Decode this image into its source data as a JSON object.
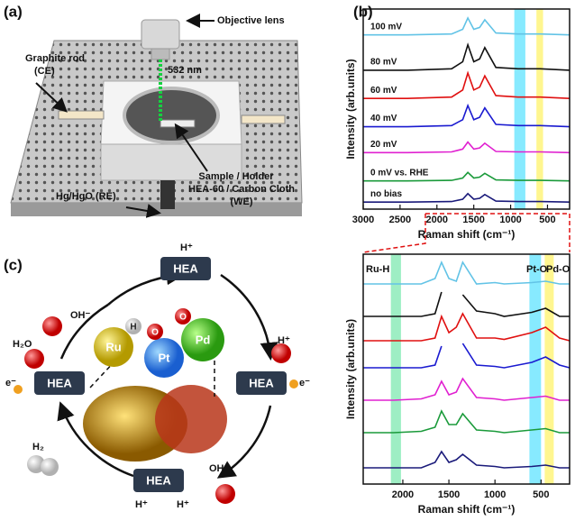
{
  "panel_a": {
    "label": "(a)",
    "objective": "Objective lens",
    "wavelength": "532 nm",
    "ce": [
      "Graphite rod",
      "(CE)"
    ],
    "we": [
      "Sample / Holder",
      "HEA-60 / Carbon Cloth",
      "(WE)"
    ],
    "re": "Hg/HgO (RE)"
  },
  "panel_b": {
    "label": "(b)"
  },
  "panel_c": {
    "label": "(c)",
    "hea": [
      "HEA",
      "HEA",
      "HEA",
      "HEA"
    ],
    "species": {
      "h_top": "H⁺",
      "oh_left": "OH⁻",
      "h2o": "H₂O",
      "e_left": "e⁻",
      "h_right": "H⁺",
      "e_right": "e⁻",
      "h2": "H₂",
      "oh_bottom": "OH⁻",
      "h_bottom_1": "H⁺",
      "h_bottom_2": "H⁺"
    },
    "atoms": {
      "ru": "Ru",
      "pt": "Pt",
      "pd": "Pd",
      "h": "H",
      "o1": "O",
      "o2": "O"
    }
  },
  "chart_data": [
    {
      "type": "line",
      "x_label": "Raman shift (cm⁻¹)",
      "y_label": "Intensity (arb.units)",
      "xlim": [
        3000,
        200
      ],
      "xticks": [
        3000,
        2500,
        2000,
        1500,
        1000,
        500
      ],
      "ylim": [
        0,
        8.5
      ],
      "x": [
        3000,
        2400,
        1800,
        1650,
        1580,
        1500,
        1420,
        1350,
        1200,
        900,
        600,
        200
      ],
      "bands": [
        {
          "xrange": [
            950,
            800
          ],
          "color": "#5fe3ff"
        },
        {
          "xrange": [
            650,
            560
          ],
          "color": "#fff36a"
        }
      ],
      "series": [
        {
          "name": "100 mV",
          "color": "#62c3e6",
          "values": [
            7.4,
            7.4,
            7.44,
            7.64,
            8.12,
            7.64,
            7.72,
            8.04,
            7.48,
            7.44,
            7.44,
            7.4
          ]
        },
        {
          "name": "80 mV",
          "color": "#111111",
          "values": [
            5.9,
            5.9,
            5.96,
            6.26,
            6.98,
            6.26,
            6.38,
            6.86,
            6.02,
            5.96,
            5.96,
            5.9
          ]
        },
        {
          "name": "60 mV",
          "color": "#e01010",
          "values": [
            4.7,
            4.7,
            4.76,
            5.06,
            5.78,
            5.06,
            5.18,
            5.66,
            4.82,
            4.76,
            4.76,
            4.7
          ]
        },
        {
          "name": "40 mV",
          "color": "#1a1ad0",
          "values": [
            3.5,
            3.5,
            3.55,
            3.8,
            4.4,
            3.8,
            3.9,
            4.3,
            3.6,
            3.55,
            3.55,
            3.5
          ]
        },
        {
          "name": "20 mV",
          "color": "#e020d0",
          "values": [
            2.4,
            2.4,
            2.43,
            2.55,
            2.85,
            2.55,
            2.6,
            2.8,
            2.45,
            2.43,
            2.43,
            2.4
          ]
        },
        {
          "name": "0 mV vs. RHE",
          "color": "#1a9a3a",
          "values": [
            1.2,
            1.2,
            1.22,
            1.32,
            1.56,
            1.32,
            1.36,
            1.52,
            1.24,
            1.22,
            1.22,
            1.2
          ]
        },
        {
          "name": "no bias",
          "color": "#1a1a7a",
          "values": [
            0.3,
            0.3,
            0.32,
            0.42,
            0.66,
            0.42,
            0.46,
            0.62,
            0.34,
            0.32,
            0.32,
            0.3
          ]
        }
      ]
    },
    {
      "type": "line",
      "x_label": "Raman shift (cm⁻¹)",
      "y_label": "Intensity (arb.units)",
      "xlim": [
        2430,
        190
      ],
      "xticks": [
        2000,
        1500,
        1000,
        500
      ],
      "ylim": [
        0,
        8.5
      ],
      "x": [
        2430,
        2100,
        1800,
        1650,
        1580,
        1500,
        1420,
        1350,
        1200,
        1000,
        900,
        600,
        450,
        300,
        190
      ],
      "bands": [
        {
          "xrange": [
            2130,
            2020
          ],
          "color": "#7ee8b0"
        },
        {
          "xrange": [
            626,
            500
          ],
          "color": "#5fe3ff"
        },
        {
          "xrange": [
            460,
            362
          ],
          "color": "#fff36a"
        }
      ],
      "annotations": [
        "Ru-H",
        "Pt-O",
        "Pd-O"
      ],
      "series": [
        {
          "color": "#62c3e6",
          "values": [
            7.4,
            7.4,
            7.4,
            7.6,
            8.2,
            7.6,
            7.5,
            8.2,
            7.4,
            7.45,
            7.4,
            7.45,
            7.5,
            7.4,
            7.4
          ]
        },
        {
          "color": "#111111",
          "values": [
            6.2,
            6.2,
            6.2,
            6.3,
            7.1,
            null,
            null,
            7.0,
            6.4,
            6.3,
            6.2,
            6.35,
            6.5,
            6.2,
            6.2
          ]
        },
        {
          "color": "#e01010",
          "values": [
            5.3,
            5.3,
            5.3,
            5.4,
            6.2,
            5.6,
            5.8,
            6.3,
            5.4,
            5.4,
            5.35,
            5.6,
            5.8,
            5.4,
            5.3
          ]
        },
        {
          "color": "#1a1ad0",
          "values": [
            4.3,
            4.3,
            4.3,
            4.4,
            5.1,
            null,
            null,
            5.2,
            4.4,
            4.35,
            4.3,
            4.5,
            4.7,
            4.4,
            4.3
          ]
        },
        {
          "color": "#e020d0",
          "values": [
            3.1,
            3.1,
            3.15,
            3.3,
            3.8,
            3.3,
            3.4,
            3.9,
            3.2,
            3.15,
            3.1,
            3.2,
            3.25,
            3.1,
            3.1
          ]
        },
        {
          "color": "#1a9a3a",
          "values": [
            1.9,
            1.9,
            1.95,
            2.1,
            2.7,
            2.2,
            2.2,
            2.6,
            2.0,
            1.95,
            1.9,
            2.0,
            2.05,
            1.9,
            1.9
          ]
        },
        {
          "color": "#1a1a7a",
          "values": [
            0.6,
            0.6,
            0.6,
            0.8,
            1.2,
            0.8,
            0.9,
            1.1,
            0.7,
            0.65,
            0.6,
            0.65,
            0.7,
            0.6,
            0.6
          ]
        }
      ]
    }
  ]
}
